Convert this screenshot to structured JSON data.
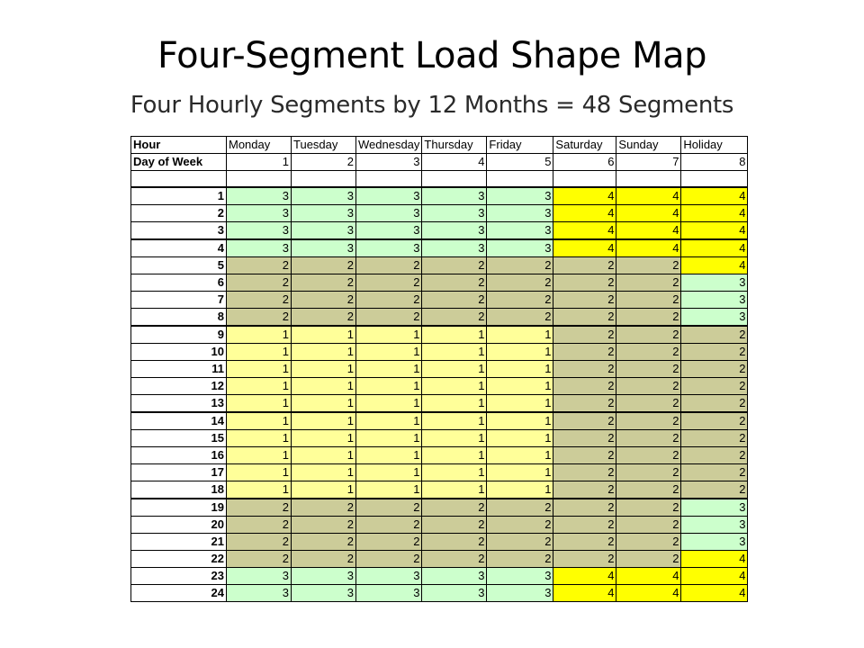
{
  "title": "Four-Segment Load Shape Map",
  "subtitle": "Four Hourly Segments by 12 Months = 48 Segments",
  "table": {
    "corner_label": "Hour",
    "dow_label": "Day of Week",
    "days": [
      "Monday",
      "Tuesday",
      "Wednesday",
      "Thursday",
      "Friday",
      "Saturday",
      "Sunday",
      "Holiday"
    ],
    "day_numbers": [
      "1",
      "2",
      "3",
      "4",
      "5",
      "6",
      "7",
      "8"
    ],
    "segment_colors": {
      "1": "#ffff99",
      "2": "#cccc99",
      "3": "#ccffcc",
      "4": "#ffff00"
    },
    "rows": [
      {
        "hour": "1",
        "values": [
          3,
          3,
          3,
          3,
          3,
          4,
          4,
          4
        ]
      },
      {
        "hour": "2",
        "values": [
          3,
          3,
          3,
          3,
          3,
          4,
          4,
          4
        ]
      },
      {
        "hour": "3",
        "values": [
          3,
          3,
          3,
          3,
          3,
          4,
          4,
          4
        ]
      },
      {
        "hour": "4",
        "values": [
          3,
          3,
          3,
          3,
          3,
          4,
          4,
          4
        ]
      },
      {
        "hour": "5",
        "values": [
          2,
          2,
          2,
          2,
          2,
          2,
          2,
          4
        ]
      },
      {
        "hour": "6",
        "values": [
          2,
          2,
          2,
          2,
          2,
          2,
          2,
          3
        ]
      },
      {
        "hour": "7",
        "values": [
          2,
          2,
          2,
          2,
          2,
          2,
          2,
          3
        ]
      },
      {
        "hour": "8",
        "values": [
          2,
          2,
          2,
          2,
          2,
          2,
          2,
          3
        ]
      },
      {
        "hour": "9",
        "values": [
          1,
          1,
          1,
          1,
          1,
          2,
          2,
          2
        ]
      },
      {
        "hour": "10",
        "values": [
          1,
          1,
          1,
          1,
          1,
          2,
          2,
          2
        ]
      },
      {
        "hour": "11",
        "values": [
          1,
          1,
          1,
          1,
          1,
          2,
          2,
          2
        ]
      },
      {
        "hour": "12",
        "values": [
          1,
          1,
          1,
          1,
          1,
          2,
          2,
          2
        ]
      },
      {
        "hour": "13",
        "values": [
          1,
          1,
          1,
          1,
          1,
          2,
          2,
          2
        ]
      },
      {
        "hour": "14",
        "values": [
          1,
          1,
          1,
          1,
          1,
          2,
          2,
          2
        ]
      },
      {
        "hour": "15",
        "values": [
          1,
          1,
          1,
          1,
          1,
          2,
          2,
          2
        ]
      },
      {
        "hour": "16",
        "values": [
          1,
          1,
          1,
          1,
          1,
          2,
          2,
          2
        ]
      },
      {
        "hour": "17",
        "values": [
          1,
          1,
          1,
          1,
          1,
          2,
          2,
          2
        ]
      },
      {
        "hour": "18",
        "values": [
          1,
          1,
          1,
          1,
          1,
          2,
          2,
          2
        ]
      },
      {
        "hour": "19",
        "values": [
          2,
          2,
          2,
          2,
          2,
          2,
          2,
          3
        ]
      },
      {
        "hour": "20",
        "values": [
          2,
          2,
          2,
          2,
          2,
          2,
          2,
          3
        ]
      },
      {
        "hour": "21",
        "values": [
          2,
          2,
          2,
          2,
          2,
          2,
          2,
          3
        ]
      },
      {
        "hour": "22",
        "values": [
          2,
          2,
          2,
          2,
          2,
          2,
          2,
          4
        ]
      },
      {
        "hour": "23",
        "values": [
          3,
          3,
          3,
          3,
          3,
          4,
          4,
          4
        ]
      },
      {
        "hour": "24",
        "values": [
          3,
          3,
          3,
          3,
          3,
          4,
          4,
          4
        ]
      }
    ]
  }
}
